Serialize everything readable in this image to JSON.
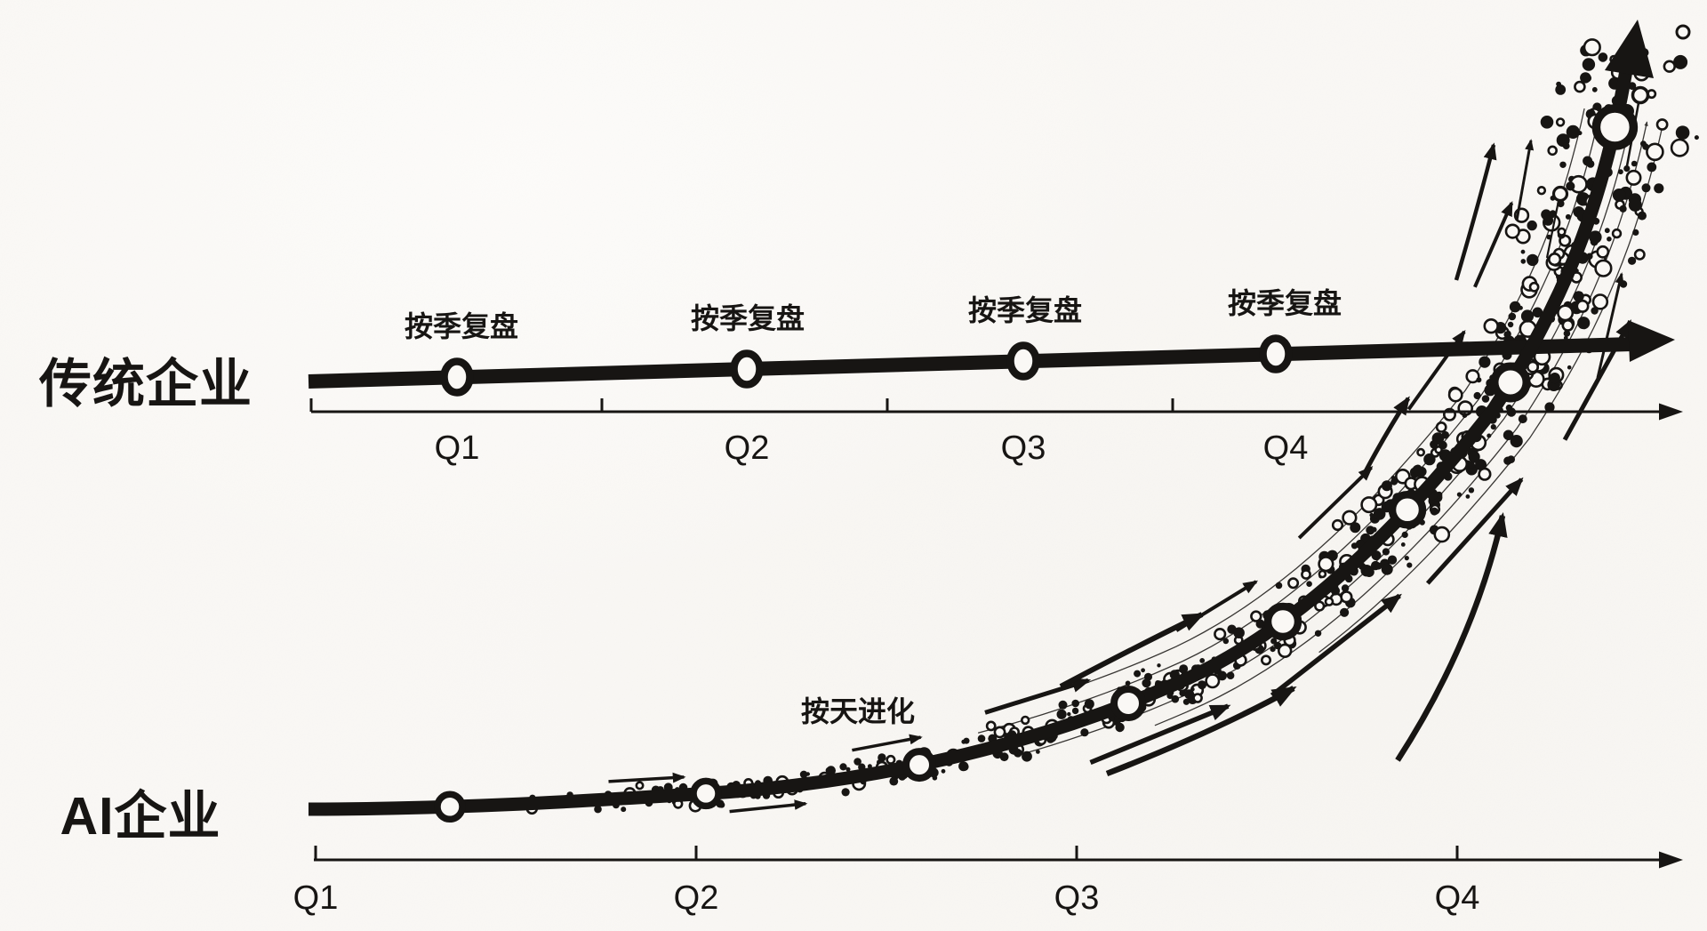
{
  "colors": {
    "ink": "#171513",
    "paper": "#faf8f5"
  },
  "top_chart": {
    "label": "传统企业",
    "marker_label": "按季复盘",
    "x_labels": [
      "Q1",
      "Q2",
      "Q3",
      "Q4"
    ],
    "marker_count": 4
  },
  "bottom_chart": {
    "label": "AI企业",
    "annotation": "按天进化",
    "x_labels": [
      "Q1",
      "Q2",
      "Q3",
      "Q4"
    ],
    "marker_count": 8
  },
  "chart_data": [
    {
      "type": "line",
      "name": "传统企业",
      "x": [
        "Q1",
        "Q2",
        "Q3",
        "Q4"
      ],
      "values_relative": [
        0.05,
        0.07,
        0.09,
        0.11
      ],
      "shape": "near-flat linear, slight rise, arrow continuing right",
      "point_annotation": "按季复盘",
      "legend_position": "left of line",
      "grid": false
    },
    {
      "type": "line",
      "name": "AI企业",
      "x": [
        "Q1",
        "Q2",
        "Q3",
        "Q4"
      ],
      "values_relative": [
        0.02,
        0.05,
        0.22,
        1.0
      ],
      "shape": "exponential takeoff with large up-right arrowhead, surrounded by dense dot scatter, parallel hairlines and small momentum arrows",
      "annotation": "按天进化",
      "legend_position": "left of curve",
      "grid": false
    }
  ]
}
